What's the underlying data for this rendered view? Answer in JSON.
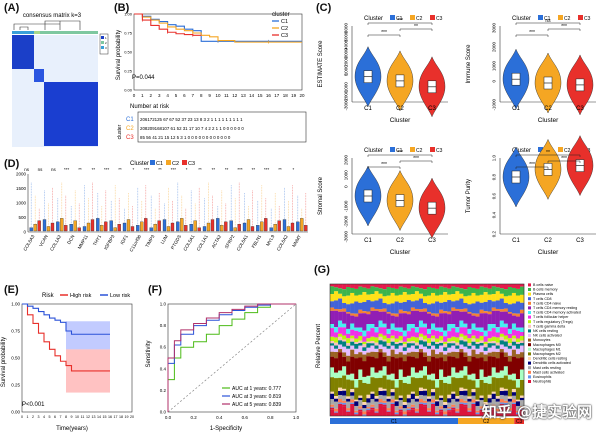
{
  "figure": {
    "labels": {
      "A": "(A)",
      "B": "(B)",
      "C": "(C)",
      "D": "(D)",
      "E": "(E)",
      "F": "(F)",
      "G": "(G)"
    },
    "watermark": "知乎 @捷实验网"
  },
  "colors": {
    "c1": "#2b6fd8",
    "c2": "#f5a623",
    "c3": "#e8302b",
    "high": "#e8302b",
    "low": "#2b52d8",
    "green": "#4cbb17",
    "gray": "#888888"
  },
  "chart_data": [
    {
      "id": "A",
      "type": "heatmap",
      "title": "consensus matrix k=3",
      "legend": [
        "1",
        "2",
        "3"
      ]
    },
    {
      "id": "B",
      "type": "line",
      "title": "",
      "ylabel": "Survival probability",
      "pvalue": "P=0.044",
      "legend_title": "cluster",
      "xlim": [
        0,
        20
      ],
      "ylim": [
        0,
        1
      ],
      "xticks": [
        "0",
        "1",
        "2",
        "3",
        "4",
        "5",
        "6",
        "7",
        "8",
        "9",
        "10",
        "11",
        "12",
        "13",
        "14",
        "15",
        "16",
        "17",
        "18",
        "19",
        "20"
      ],
      "yticks": [
        "0.00",
        "0.25",
        "0.50",
        "0.75",
        "1.00"
      ],
      "series": [
        {
          "name": "C1",
          "x": [
            0,
            1,
            2,
            3,
            4,
            5,
            6,
            7,
            8,
            9,
            10,
            12,
            14,
            16,
            20
          ],
          "y": [
            1.0,
            0.97,
            0.93,
            0.9,
            0.86,
            0.84,
            0.8,
            0.78,
            0.64,
            0.64,
            0.64,
            0.64,
            0.64,
            0.64,
            0.64
          ]
        },
        {
          "name": "C2",
          "x": [
            0,
            1,
            2,
            3,
            4,
            5,
            6,
            7,
            8,
            9,
            10,
            12,
            14,
            16,
            20
          ],
          "y": [
            1.0,
            0.96,
            0.92,
            0.88,
            0.83,
            0.8,
            0.78,
            0.75,
            0.72,
            0.7,
            0.65,
            0.63,
            0.63,
            0.63,
            0.63
          ]
        },
        {
          "name": "C3",
          "x": [
            0,
            1,
            2,
            3,
            4,
            5,
            6,
            7,
            8
          ],
          "y": [
            1.0,
            0.92,
            0.85,
            0.8,
            0.76,
            0.74,
            0.73,
            0.72,
            0.72
          ]
        }
      ],
      "risk_title": "Number at risk",
      "risk_ylabel": "cluster",
      "risk_table": [
        {
          "name": "C1",
          "text": "206172125 67 67 52 37 23 13 8 3 2 1 1 1 1 1 1 1 1 1"
        },
        {
          "name": "C2",
          "text": "208209168107 61 52 31 17 10 7 4 2 2 1 1 0 0 0 0 0 0"
        },
        {
          "name": "C3",
          "text": "85 56 41 21 15 12 5 3 1 0 0 0 0 0 0 0 0 0 0 0 0"
        }
      ]
    },
    {
      "id": "C1",
      "type": "violin",
      "ylabel": "ESTIMATE Score",
      "xlabel": "Cluster",
      "legend_title": "Cluster",
      "categories": [
        "C1",
        "C2",
        "C3"
      ],
      "medians": [
        0,
        -500,
        -1200
      ],
      "ylim": [
        -3000,
        6000
      ],
      "yticks": [
        "-3000",
        "-2000",
        "-1000",
        "0",
        "1000",
        "2000",
        "3000",
        "4000",
        "5000",
        "6000"
      ],
      "sig": [
        "***",
        "**",
        "***"
      ]
    },
    {
      "id": "C2",
      "type": "violin",
      "ylabel": "Immune Score",
      "xlabel": "Cluster",
      "legend_title": "Cluster",
      "categories": [
        "C1",
        "C2",
        "C3"
      ],
      "medians": [
        200,
        0,
        -100
      ],
      "ylim": [
        -1000,
        3000
      ],
      "yticks": [
        "-1000",
        "0",
        "1000",
        "2000",
        "3000"
      ],
      "sig": [
        "***",
        "***",
        "ns"
      ]
    },
    {
      "id": "C3",
      "type": "violin",
      "ylabel": "Stromal Score",
      "xlabel": "Cluster",
      "legend_title": "Cluster",
      "categories": [
        "C1",
        "C2",
        "C3"
      ],
      "medians": [
        -500,
        -800,
        -1300
      ],
      "ylim": [
        -3000,
        2000
      ],
      "yticks": [
        "-3000",
        "-2000",
        "-1000",
        "0",
        "1000",
        "2000"
      ],
      "sig": [
        "***",
        "***",
        "***"
      ]
    },
    {
      "id": "C4",
      "type": "violin",
      "ylabel": "Tumor Purity",
      "xlabel": "Cluster",
      "legend_title": "Cluster",
      "categories": [
        "C1",
        "C2",
        "C3"
      ],
      "medians": [
        0.8,
        0.88,
        0.92
      ],
      "ylim": [
        0.2,
        1.0
      ],
      "yticks": [
        "0.2",
        "0.4",
        "0.6",
        "0.8",
        "1.0"
      ],
      "sig": [
        "***",
        "***",
        "**"
      ]
    },
    {
      "id": "D",
      "type": "bar",
      "subtype": "boxplot",
      "legend_title": "Cluster",
      "series_names": [
        "C1",
        "C2",
        "C3"
      ],
      "ylim": [
        0,
        2000
      ],
      "yticks": [
        "0",
        "500",
        "1000",
        "1500",
        "2000"
      ],
      "categories": [
        "COL6A3",
        "VCAN",
        "COL1A2",
        "DCN",
        "MMP11",
        "THY1",
        "IGFBP3",
        "IGF1",
        "C11orf96",
        "TIMP3",
        "LUM",
        "PTGDS",
        "COL5A1",
        "COL1A1",
        "ACTA2",
        "SFRP2",
        "COL6A1",
        "FBLN1",
        "MYL9",
        "COL6A2",
        "NNMT"
      ],
      "sig": [
        "ns",
        "ns",
        "ns",
        "***",
        "**",
        "**",
        "***",
        "**",
        "*",
        "***",
        "**",
        "***",
        "*",
        "**",
        "**",
        "**",
        "***",
        "**",
        "***",
        "**",
        "*"
      ]
    },
    {
      "id": "E",
      "type": "line",
      "ylabel": "Survival probability",
      "xlabel": "Time(years)",
      "pvalue": "P<0.001",
      "legend_title": "Risk",
      "xlim": [
        0,
        20
      ],
      "ylim": [
        0,
        1
      ],
      "xticks": [
        "0",
        "1",
        "2",
        "3",
        "4",
        "5",
        "6",
        "7",
        "8",
        "9",
        "10",
        "11",
        "12",
        "13",
        "14",
        "15",
        "16",
        "17",
        "18",
        "19",
        "20"
      ],
      "yticks": [
        "0.00",
        "0.25",
        "0.50",
        "0.75",
        "1.00"
      ],
      "series": [
        {
          "name": "High risk",
          "x": [
            0,
            1,
            2,
            3,
            4,
            5,
            6,
            7,
            8,
            9,
            10,
            11,
            12,
            16
          ],
          "y": [
            1.0,
            0.9,
            0.82,
            0.73,
            0.65,
            0.58,
            0.52,
            0.47,
            0.43,
            0.38,
            0.38,
            0.38,
            0.38,
            0.38
          ]
        },
        {
          "name": "Low risk",
          "x": [
            0,
            1,
            2,
            3,
            4,
            5,
            6,
            7,
            8,
            9,
            10,
            11,
            12,
            16
          ],
          "y": [
            1.0,
            0.98,
            0.96,
            0.93,
            0.9,
            0.87,
            0.85,
            0.83,
            0.75,
            0.72,
            0.72,
            0.72,
            0.72,
            0.72
          ]
        }
      ]
    },
    {
      "id": "F",
      "type": "line",
      "ylabel": "Sensitivity",
      "xlabel": "1-Specificity",
      "xlim": [
        0,
        1
      ],
      "ylim": [
        0,
        1
      ],
      "xticks": [
        "0.0",
        "0.2",
        "0.4",
        "0.6",
        "0.8",
        "1.0"
      ],
      "yticks": [
        "0.0",
        "0.2",
        "0.4",
        "0.6",
        "0.8",
        "1.0"
      ],
      "series": [
        {
          "name": "AUC at 1 years: 0.777",
          "x": [
            0,
            0.05,
            0.1,
            0.2,
            0.3,
            0.4,
            0.5,
            0.6,
            0.7,
            0.8,
            1.0
          ],
          "y": [
            0,
            0.3,
            0.5,
            0.6,
            0.65,
            0.72,
            0.8,
            0.86,
            0.92,
            0.97,
            1.0
          ]
        },
        {
          "name": "AUC at 3 years: 0.819",
          "x": [
            0,
            0.05,
            0.1,
            0.2,
            0.3,
            0.4,
            0.5,
            0.6,
            0.7,
            0.8,
            1.0
          ],
          "y": [
            0,
            0.45,
            0.62,
            0.72,
            0.8,
            0.85,
            0.9,
            0.94,
            0.97,
            0.99,
            1.0
          ]
        },
        {
          "name": "AUC at 5 years: 0.839",
          "x": [
            0,
            0.05,
            0.1,
            0.2,
            0.3,
            0.4,
            0.5,
            0.6,
            0.7,
            0.8,
            1.0
          ],
          "y": [
            0,
            0.5,
            0.66,
            0.76,
            0.82,
            0.87,
            0.92,
            0.95,
            0.98,
            1.0,
            1.0
          ]
        }
      ]
    },
    {
      "id": "G",
      "type": "bar",
      "subtype": "stacked",
      "ylabel": "Relative Percent",
      "groups": [
        "C1",
        "C2",
        "C3"
      ],
      "legend": [
        "B cells naive",
        "B cells memory",
        "Plasma cells",
        "T cells CD8",
        "T cells CD4 naive",
        "T cells CD4 memory resting",
        "T cells CD4 memory activated",
        "T cells follicular helper",
        "T cells regulatory (Tregs)",
        "T cells gamma delta",
        "NK cells resting",
        "NK cells activated",
        "Monocytes",
        "Macrophages M0",
        "Macrophages M1",
        "Macrophages M2",
        "Dendritic cells resting",
        "Dendritic cells activated",
        "Mast cells resting",
        "Mast cells activated",
        "Eosinophils",
        "Neutrophils"
      ]
    }
  ]
}
